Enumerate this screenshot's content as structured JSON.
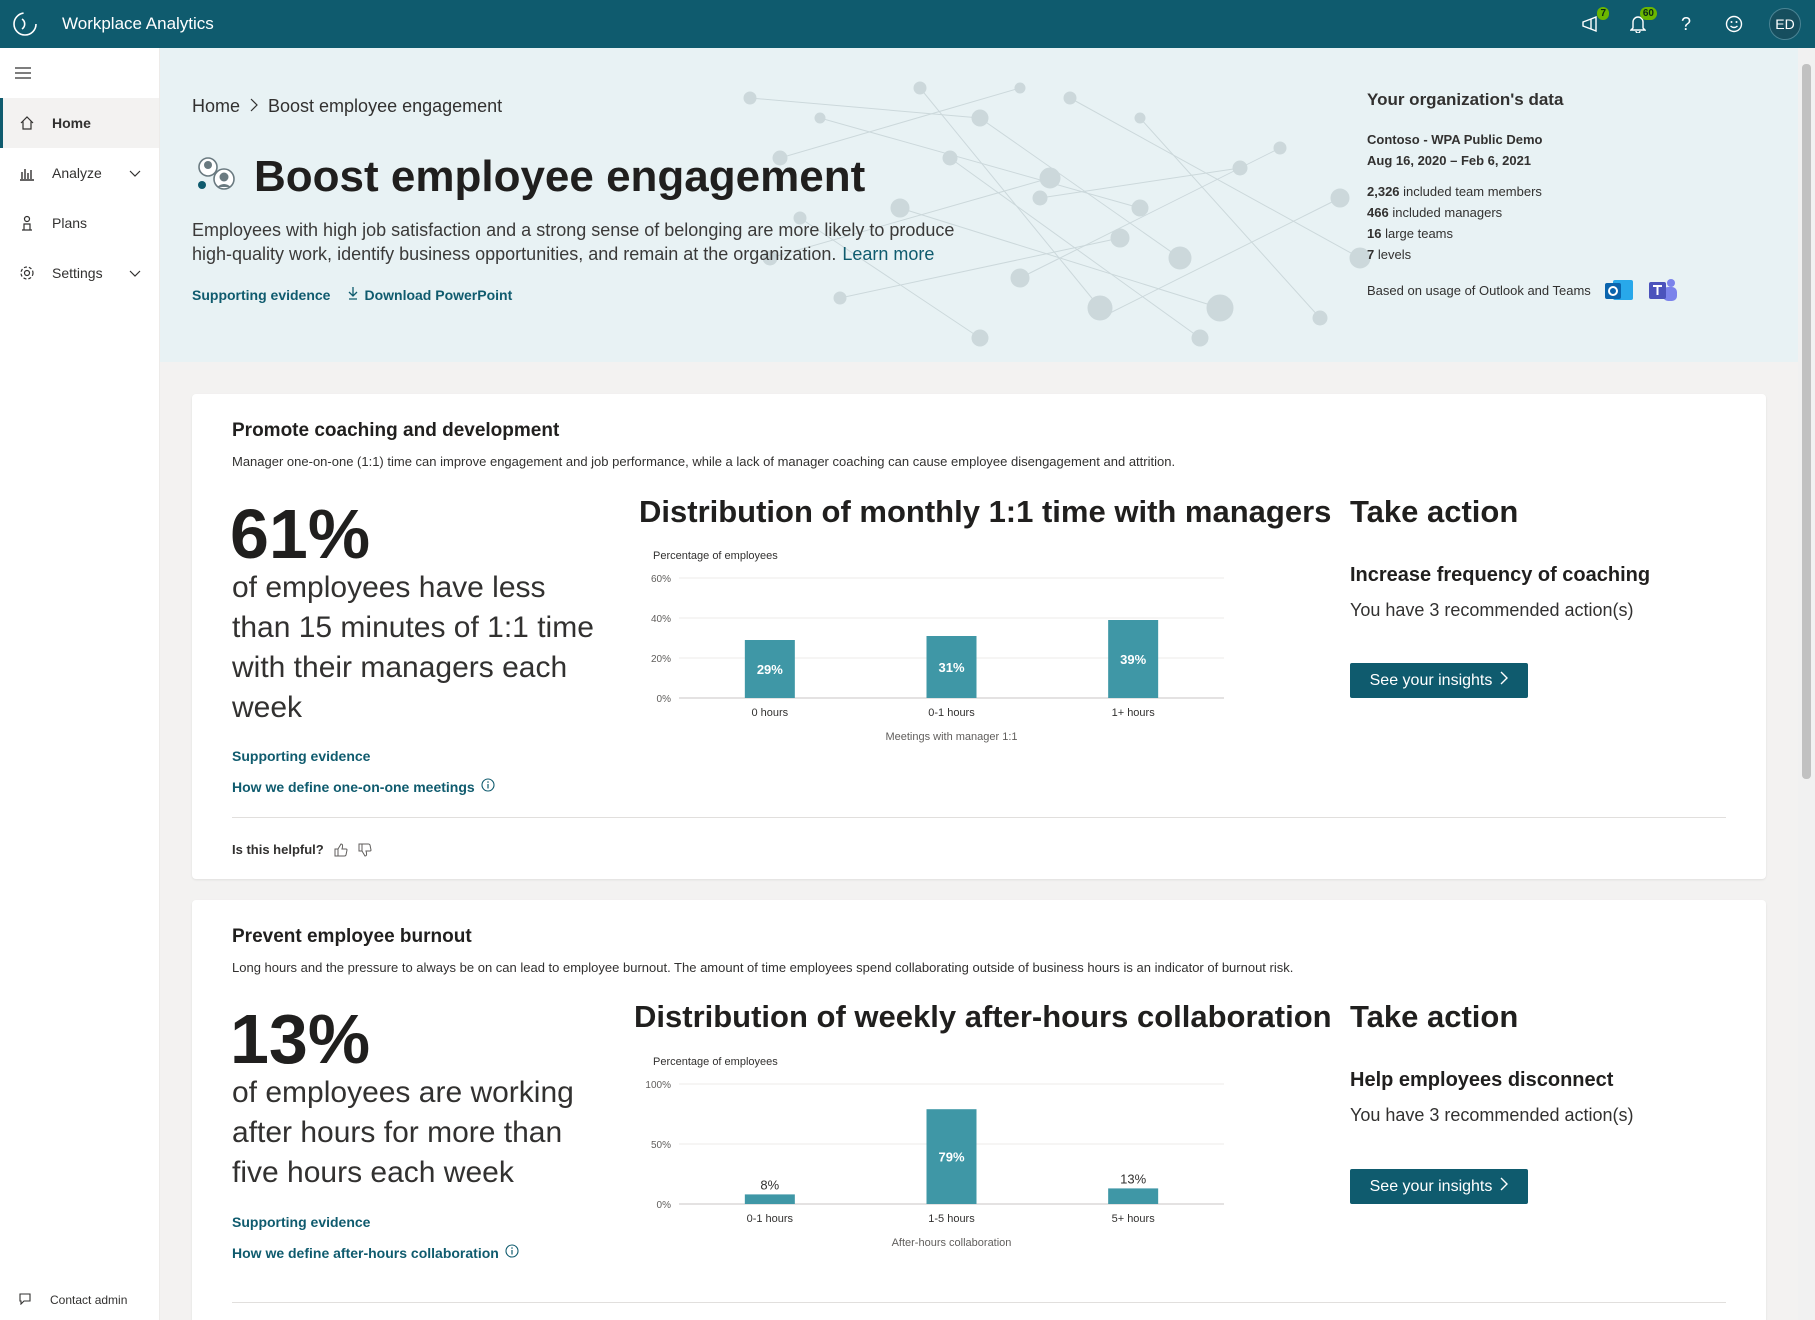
{
  "app": {
    "title": "Workplace Analytics",
    "user_initials": "ED"
  },
  "header": {
    "megaphone_badge": "7",
    "notifications_badge": "60",
    "help_glyph": "?",
    "icons": [
      "megaphone-icon",
      "bell-icon",
      "help-icon",
      "feedback-smiley-icon"
    ]
  },
  "sidebar": {
    "items": [
      {
        "label": "Home",
        "icon": "home-icon",
        "active": true
      },
      {
        "label": "Analyze",
        "icon": "chart-icon",
        "expandable": true
      },
      {
        "label": "Plans",
        "icon": "plans-icon"
      },
      {
        "label": "Settings",
        "icon": "gear-icon",
        "expandable": true
      }
    ],
    "contact_admin": "Contact admin"
  },
  "hero": {
    "breadcrumb": {
      "home": "Home",
      "current": "Boost employee engagement"
    },
    "title": "Boost employee engagement",
    "description": "Employees with high job satisfaction and a strong sense of belonging are more likely to produce high-quality work, identify business opportunities, and remain at the organization.",
    "learn_more": "Learn more",
    "supporting_evidence": "Supporting evidence",
    "download": "Download PowerPoint"
  },
  "org": {
    "title": "Your organization's data",
    "name": "Contoso - WPA Public Demo",
    "dates": "Aug 16, 2020 – Feb 6, 2021",
    "stats": [
      {
        "value": "2,326",
        "label": "included team members"
      },
      {
        "value": "466",
        "label": "included managers"
      },
      {
        "value": "16",
        "label": "large teams"
      },
      {
        "value": "7",
        "label": "levels"
      }
    ],
    "usage": "Based on usage of Outlook and Teams"
  },
  "cards": [
    {
      "title": "Promote coaching and development",
      "description": "Manager one-on-one (1:1) time can improve engagement and job performance, while a lack of manager coaching can cause employee disengagement and attrition.",
      "big_pct": "61%",
      "big_text": "of employees have less than 15 minutes of 1:1 time with their managers each week",
      "link1": "Supporting evidence",
      "link2": "How we define one-on-one meetings",
      "chart_title": "Distribution of monthly 1:1 time with managers",
      "ta_title": "Take action",
      "ta_sub": "Increase frequency of coaching",
      "ta_count": "You have 3 recommended action(s)",
      "ta_button": "See your insights",
      "helpful": "Is this helpful?"
    },
    {
      "title": "Prevent employee burnout",
      "description": "Long hours and the pressure to always be on can lead to employee burnout. The amount of time employees spend collaborating outside of business hours is an indicator of burnout risk.",
      "big_pct": "13%",
      "big_text": "of employees are working after hours for more than five hours each week",
      "link1": "Supporting evidence",
      "link2": "How we define after-hours collaboration",
      "chart_title": "Distribution of weekly after-hours collaboration",
      "ta_title": "Take action",
      "ta_sub": "Help employees disconnect",
      "ta_count": "You have 3 recommended action(s)",
      "ta_button": "See your insights"
    }
  ],
  "chart_data": [
    {
      "type": "bar",
      "title": "Distribution of monthly 1:1 time with managers",
      "ylabel": "Percentage of employees",
      "xlabel": "Meetings with manager 1:1",
      "categories": [
        "0 hours",
        "0-1 hours",
        "1+ hours"
      ],
      "values": [
        29,
        31,
        39
      ],
      "labels": [
        "29%",
        "31%",
        "39%"
      ],
      "label_position": "inside",
      "yticks": [
        "0%",
        "20%",
        "40%",
        "60%"
      ],
      "ylim": [
        0,
        60
      ],
      "grid": true,
      "bar_color": "#3f97a6"
    },
    {
      "type": "bar",
      "title": "Distribution of weekly after-hours collaboration",
      "ylabel": "Percentage of employees",
      "xlabel": "After-hours collaboration",
      "categories": [
        "0-1 hours",
        "1-5 hours",
        "5+ hours"
      ],
      "values": [
        8,
        79,
        13
      ],
      "labels": [
        "8%",
        "79%",
        "13%"
      ],
      "label_position": "mixed",
      "yticks": [
        "0%",
        "50%",
        "100%"
      ],
      "ylim": [
        0,
        100
      ],
      "grid": true,
      "bar_color": "#3f97a6"
    }
  ]
}
